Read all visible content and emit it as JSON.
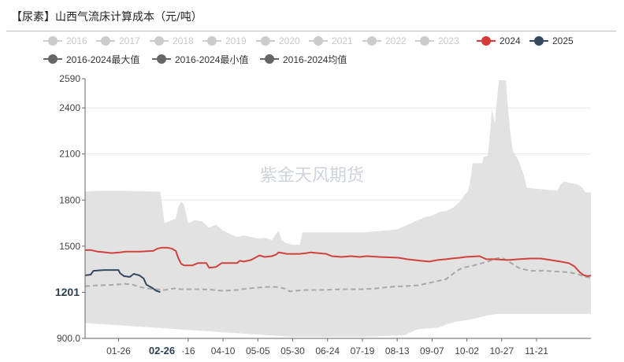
{
  "title": "【尿素】山西气流床计算成本（元/吨）",
  "legend": [
    {
      "label": "2016",
      "color": "#cccccc",
      "active": false
    },
    {
      "label": "2017",
      "color": "#cccccc",
      "active": false
    },
    {
      "label": "2018",
      "color": "#cccccc",
      "active": false
    },
    {
      "label": "2019",
      "color": "#cccccc",
      "active": false
    },
    {
      "label": "2020",
      "color": "#cccccc",
      "active": false
    },
    {
      "label": "2021",
      "color": "#cccccc",
      "active": false
    },
    {
      "label": "2022",
      "color": "#cccccc",
      "active": false
    },
    {
      "label": "2023",
      "color": "#cccccc",
      "active": false
    },
    {
      "label": "2024",
      "color": "#d63b3b",
      "active": true
    },
    {
      "label": "2025",
      "color": "#34495e",
      "active": true
    },
    {
      "label": "2016-2024最大值",
      "color": "#666666",
      "active": true
    },
    {
      "label": "2016-2024最小值",
      "color": "#666666",
      "active": true
    },
    {
      "label": "2016-2024均值",
      "color": "#666666",
      "active": true
    }
  ],
  "watermark": "紫金天风期货",
  "current_value_label": "1201",
  "current_date_label": "02-26",
  "colors": {
    "band": "#e2e2e2",
    "s2024": "#d0413c",
    "s2025": "#34495e",
    "avg": "#a8a8a8",
    "axis": "#666666",
    "grid": "#e6e6e6"
  },
  "chart_data": {
    "type": "line",
    "ylim": [
      900,
      2590
    ],
    "y_ticks": [
      "900.0",
      "1200",
      "1500",
      "1800",
      "2100",
      "2400",
      "2590"
    ],
    "x_ticks": [
      {
        "label": "01-26",
        "day": 25
      },
      {
        "label": "·16",
        "day": 75
      },
      {
        "label": "04-10",
        "day": 100
      },
      {
        "label": "05-05",
        "day": 125
      },
      {
        "label": "05-30",
        "day": 150
      },
      {
        "label": "06-24",
        "day": 175
      },
      {
        "label": "07-19",
        "day": 200
      },
      {
        "label": "08-13",
        "day": 225
      },
      {
        "label": "09-07",
        "day": 250
      },
      {
        "label": "10-02",
        "day": 275
      },
      {
        "label": "10-27",
        "day": 300
      },
      {
        "label": "11-21",
        "day": 325
      }
    ],
    "x_start_day": 1,
    "x_end_day": 364,
    "band_max": [
      [
        1,
        1855
      ],
      [
        10,
        1860
      ],
      [
        30,
        1860
      ],
      [
        55,
        1855
      ],
      [
        58,
        1650
      ],
      [
        66,
        1680
      ],
      [
        68,
        1760
      ],
      [
        70,
        1790
      ],
      [
        72,
        1770
      ],
      [
        75,
        1650
      ],
      [
        80,
        1670
      ],
      [
        85,
        1660
      ],
      [
        90,
        1620
      ],
      [
        95,
        1640
      ],
      [
        100,
        1600
      ],
      [
        105,
        1580
      ],
      [
        110,
        1560
      ],
      [
        115,
        1570
      ],
      [
        120,
        1560
      ],
      [
        125,
        1550
      ],
      [
        130,
        1555
      ],
      [
        135,
        1540
      ],
      [
        138,
        1580
      ],
      [
        140,
        1600
      ],
      [
        142,
        1540
      ],
      [
        145,
        1520
      ],
      [
        150,
        1510
      ],
      [
        155,
        1510
      ],
      [
        157,
        1590
      ],
      [
        200,
        1590
      ],
      [
        215,
        1600
      ],
      [
        225,
        1610
      ],
      [
        235,
        1650
      ],
      [
        240,
        1670
      ],
      [
        245,
        1690
      ],
      [
        250,
        1700
      ],
      [
        255,
        1720
      ],
      [
        260,
        1730
      ],
      [
        265,
        1750
      ],
      [
        270,
        1790
      ],
      [
        273,
        1830
      ],
      [
        276,
        1860
      ],
      [
        278,
        1960
      ],
      [
        279,
        2040
      ],
      [
        286,
        2040
      ],
      [
        287,
        2080
      ],
      [
        290,
        2090
      ],
      [
        291,
        2170
      ],
      [
        293,
        2390
      ],
      [
        295,
        2300
      ],
      [
        296,
        2400
      ],
      [
        298,
        2580
      ],
      [
        303,
        2580
      ],
      [
        304,
        2450
      ],
      [
        306,
        2250
      ],
      [
        308,
        2120
      ],
      [
        312,
        2060
      ],
      [
        316,
        1960
      ],
      [
        318,
        1880
      ],
      [
        330,
        1870
      ],
      [
        340,
        1860
      ],
      [
        342,
        1900
      ],
      [
        345,
        1920
      ],
      [
        355,
        1900
      ],
      [
        358,
        1880
      ],
      [
        360,
        1850
      ],
      [
        364,
        1850
      ]
    ],
    "band_min": [
      [
        1,
        1000
      ],
      [
        50,
        970
      ],
      [
        100,
        940
      ],
      [
        150,
        910
      ],
      [
        200,
        910
      ],
      [
        230,
        920
      ],
      [
        240,
        960
      ],
      [
        255,
        970
      ],
      [
        260,
        990
      ],
      [
        268,
        1010
      ],
      [
        276,
        1020
      ],
      [
        290,
        1050
      ],
      [
        297,
        1060
      ],
      [
        320,
        1060
      ],
      [
        340,
        1060
      ],
      [
        364,
        1060
      ]
    ],
    "series": [
      {
        "name": "2024",
        "points": [
          [
            1,
            1475
          ],
          [
            5,
            1475
          ],
          [
            10,
            1465
          ],
          [
            16,
            1460
          ],
          [
            20,
            1455
          ],
          [
            26,
            1460
          ],
          [
            30,
            1465
          ],
          [
            40,
            1465
          ],
          [
            50,
            1470
          ],
          [
            53,
            1485
          ],
          [
            56,
            1490
          ],
          [
            60,
            1490
          ],
          [
            63,
            1485
          ],
          [
            66,
            1470
          ],
          [
            68,
            1420
          ],
          [
            70,
            1385
          ],
          [
            72,
            1375
          ],
          [
            78,
            1375
          ],
          [
            82,
            1390
          ],
          [
            88,
            1390
          ],
          [
            90,
            1360
          ],
          [
            95,
            1365
          ],
          [
            99,
            1390
          ],
          [
            110,
            1390
          ],
          [
            112,
            1405
          ],
          [
            115,
            1400
          ],
          [
            120,
            1410
          ],
          [
            123,
            1425
          ],
          [
            126,
            1440
          ],
          [
            130,
            1430
          ],
          [
            135,
            1435
          ],
          [
            138,
            1445
          ],
          [
            140,
            1460
          ],
          [
            143,
            1455
          ],
          [
            146,
            1450
          ],
          [
            155,
            1450
          ],
          [
            160,
            1455
          ],
          [
            163,
            1460
          ],
          [
            168,
            1455
          ],
          [
            174,
            1450
          ],
          [
            178,
            1435
          ],
          [
            185,
            1430
          ],
          [
            192,
            1435
          ],
          [
            198,
            1430
          ],
          [
            203,
            1435
          ],
          [
            212,
            1430
          ],
          [
            226,
            1425
          ],
          [
            232,
            1415
          ],
          [
            242,
            1405
          ],
          [
            248,
            1400
          ],
          [
            254,
            1410
          ],
          [
            260,
            1415
          ],
          [
            264,
            1420
          ],
          [
            270,
            1425
          ],
          [
            274,
            1430
          ],
          [
            284,
            1435
          ],
          [
            289,
            1415
          ],
          [
            294,
            1415
          ],
          [
            305,
            1410
          ],
          [
            312,
            1415
          ],
          [
            320,
            1420
          ],
          [
            328,
            1420
          ],
          [
            335,
            1410
          ],
          [
            342,
            1400
          ],
          [
            348,
            1390
          ],
          [
            352,
            1370
          ],
          [
            356,
            1330
          ],
          [
            359,
            1310
          ],
          [
            362,
            1305
          ],
          [
            364,
            1310
          ]
        ]
      },
      {
        "name": "2025",
        "points": [
          [
            1,
            1310
          ],
          [
            5,
            1315
          ],
          [
            7,
            1340
          ],
          [
            15,
            1345
          ],
          [
            25,
            1345
          ],
          [
            26,
            1325
          ],
          [
            29,
            1305
          ],
          [
            33,
            1300
          ],
          [
            36,
            1320
          ],
          [
            38,
            1315
          ],
          [
            40,
            1310
          ],
          [
            43,
            1290
          ],
          [
            45,
            1250
          ],
          [
            49,
            1230
          ],
          [
            52,
            1210
          ],
          [
            55,
            1201
          ]
        ]
      },
      {
        "name": "均值",
        "points": [
          [
            1,
            1240
          ],
          [
            10,
            1245
          ],
          [
            20,
            1248
          ],
          [
            30,
            1255
          ],
          [
            35,
            1250
          ],
          [
            40,
            1235
          ],
          [
            45,
            1225
          ],
          [
            52,
            1220
          ],
          [
            58,
            1215
          ],
          [
            65,
            1225
          ],
          [
            70,
            1220
          ],
          [
            80,
            1220
          ],
          [
            90,
            1218
          ],
          [
            100,
            1210
          ],
          [
            110,
            1215
          ],
          [
            118,
            1225
          ],
          [
            125,
            1230
          ],
          [
            130,
            1235
          ],
          [
            138,
            1235
          ],
          [
            144,
            1225
          ],
          [
            148,
            1205
          ],
          [
            152,
            1210
          ],
          [
            160,
            1215
          ],
          [
            170,
            1215
          ],
          [
            180,
            1218
          ],
          [
            190,
            1220
          ],
          [
            200,
            1220
          ],
          [
            210,
            1225
          ],
          [
            220,
            1235
          ],
          [
            230,
            1240
          ],
          [
            240,
            1245
          ],
          [
            250,
            1265
          ],
          [
            260,
            1285
          ],
          [
            265,
            1320
          ],
          [
            268,
            1340
          ],
          [
            272,
            1360
          ],
          [
            278,
            1370
          ],
          [
            286,
            1390
          ],
          [
            290,
            1400
          ],
          [
            296,
            1420
          ],
          [
            300,
            1425
          ],
          [
            305,
            1400
          ],
          [
            312,
            1360
          ],
          [
            316,
            1350
          ],
          [
            320,
            1340
          ],
          [
            330,
            1340
          ],
          [
            340,
            1335
          ],
          [
            348,
            1330
          ],
          [
            354,
            1320
          ],
          [
            360,
            1300
          ],
          [
            364,
            1295
          ]
        ]
      }
    ]
  }
}
